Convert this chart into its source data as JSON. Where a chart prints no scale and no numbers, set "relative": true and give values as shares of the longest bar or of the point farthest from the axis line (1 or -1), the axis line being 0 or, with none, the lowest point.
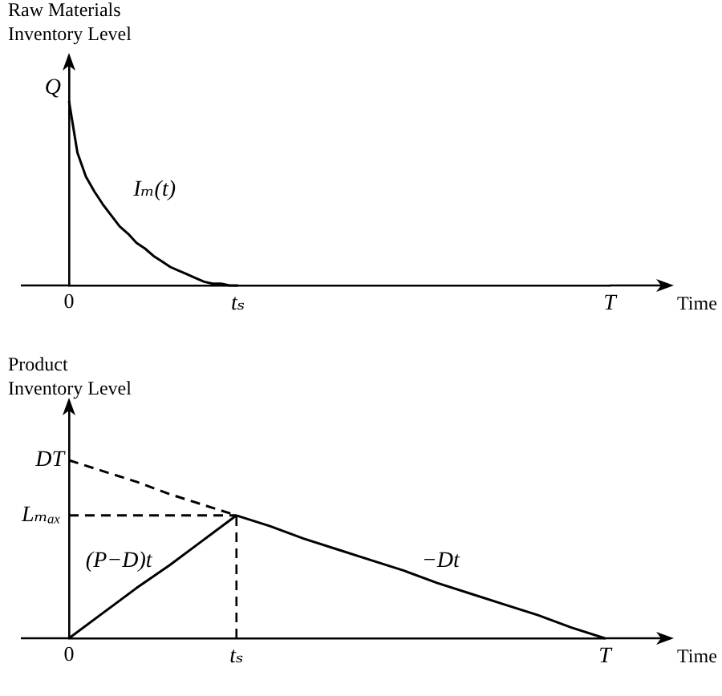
{
  "chart_data": [
    {
      "type": "line",
      "ylabel": "Raw Materials Inventory Level",
      "xlabel": "Time",
      "relative": true,
      "marker": "none",
      "line_style": "solid",
      "categories": [
        "0",
        null,
        null,
        null,
        null,
        null,
        null,
        null,
        null,
        null,
        null,
        null,
        null,
        null,
        null,
        null,
        null,
        null,
        null,
        null,
        "tₛ",
        null,
        null,
        null,
        null,
        null,
        null,
        null,
        null,
        null,
        null,
        null,
        null,
        null,
        null,
        null,
        null,
        null,
        null,
        null,
        null,
        null,
        null,
        null,
        null,
        null,
        null,
        null,
        null,
        null,
        null,
        null,
        null,
        null,
        null,
        null,
        null,
        null,
        null,
        null,
        null,
        null,
        null,
        null,
        "T"
      ],
      "series": [
        {
          "name": "Iₘ(t)",
          "color": "#000000",
          "values": [
            1,
            0.72,
            0.59,
            0.51,
            0.44,
            0.38,
            0.32,
            0.28,
            0.23,
            0.2,
            0.16,
            0.13,
            0.1,
            0.08,
            0.06,
            0.04,
            0.02,
            0.01,
            0.01,
            0,
            0,
            null,
            null,
            null,
            null,
            null,
            null,
            null,
            null,
            null,
            null,
            null,
            null,
            null,
            null,
            null,
            null,
            null,
            null,
            null,
            null,
            null,
            null,
            null,
            null,
            null,
            null,
            null,
            null,
            null,
            null,
            null,
            null,
            null,
            null,
            null,
            null,
            null,
            null,
            null,
            null,
            null,
            null,
            null,
            null
          ]
        }
      ],
      "annotations": [
        {
          "text": "Q",
          "x": "0",
          "y": 1
        }
      ]
    },
    {
      "type": "line",
      "ylabel": "Product Inventory Level",
      "xlabel": "Time",
      "relative": true,
      "marker": "none",
      "line_style": "solid",
      "categories": [
        "0",
        null,
        null,
        null,
        null,
        "tₛ",
        null,
        null,
        null,
        null,
        null,
        null,
        null,
        null,
        null,
        null,
        "T"
      ],
      "series": [
        {
          "name": "(P−D)t",
          "color": "#000000",
          "values": [
            0,
            0.14,
            0.28,
            0.41,
            0.55,
            0.69,
            null,
            null,
            null,
            null,
            null,
            null,
            null,
            null,
            null,
            null,
            null
          ]
        },
        {
          "name": "−Dt",
          "color": "#000000",
          "values": [
            null,
            null,
            null,
            null,
            null,
            0.69,
            0.63,
            0.56,
            0.5,
            0.44,
            0.38,
            0.31,
            0.25,
            0.19,
            0.13,
            0.06,
            0
          ]
        },
        {
          "color": "#000000",
          "line_style": "dashed",
          "values": [
            1,
            0.94,
            0.88,
            0.81,
            0.75,
            0.69,
            null,
            null,
            null,
            null,
            null,
            null,
            null,
            null,
            null,
            null,
            null
          ]
        },
        {
          "color": "#000000",
          "line_style": "dashed",
          "values": [
            0.69,
            0.69,
            0.69,
            0.69,
            0.69,
            0.69,
            null,
            null,
            null,
            null,
            null,
            null,
            null,
            null,
            null,
            null,
            null
          ]
        }
      ],
      "ref_lines": [
        {
          "axis": "x",
          "value": "tₛ",
          "line_style": "dashed",
          "color": "#000000"
        }
      ],
      "annotations": [
        {
          "text": "DT",
          "x": "0",
          "y": 1
        },
        {
          "text": "Lₘₐₓ",
          "x": "0",
          "y": 0.69
        }
      ]
    }
  ]
}
